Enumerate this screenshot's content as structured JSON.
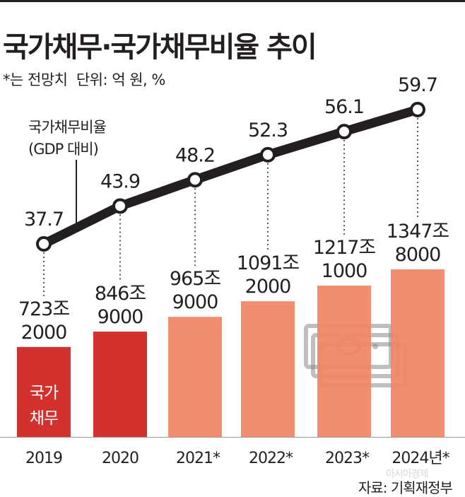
{
  "title": "국가채무·국가채무비율 추이",
  "note": "*는 전망치",
  "unit": "단위: 억 원, %",
  "source": "자료: 기획재정부",
  "watermark": "아시아경제",
  "colors": {
    "actual_bar": "#d2312d",
    "forecast_bar": "#f08566",
    "line": "#231f20",
    "axis": "#999999",
    "icon": "#8a8a8a"
  },
  "chart_data": {
    "type": "bar",
    "categories": [
      "2019",
      "2020",
      "2021*",
      "2022*",
      "2023*",
      "2024년*"
    ],
    "series": [
      {
        "name": "국가채무",
        "values": [
          7232000,
          8469000,
          9659000,
          10912000,
          12171000,
          13478000
        ],
        "labels": [
          [
            "723조",
            "2000"
          ],
          [
            "846조",
            "9000"
          ],
          [
            "965조",
            "9000"
          ],
          [
            "1091조",
            "2000"
          ],
          [
            "1217조",
            "1000"
          ],
          [
            "1347조",
            "8000"
          ]
        ],
        "forecast": [
          false,
          false,
          true,
          true,
          true,
          true
        ]
      },
      {
        "name": "국가채무비율 (GDP 대비)",
        "label_lines": [
          "국가채무비율",
          "(GDP 대비)"
        ],
        "type": "line",
        "values": [
          37.7,
          43.9,
          48.2,
          52.3,
          56.1,
          59.7
        ]
      }
    ],
    "bar_inner_label": [
      "국가",
      "채무"
    ],
    "bar_axis": [
      0,
      13478000
    ],
    "line_axis": [
      37.7,
      59.7
    ],
    "grid": false,
    "legend": "none"
  }
}
